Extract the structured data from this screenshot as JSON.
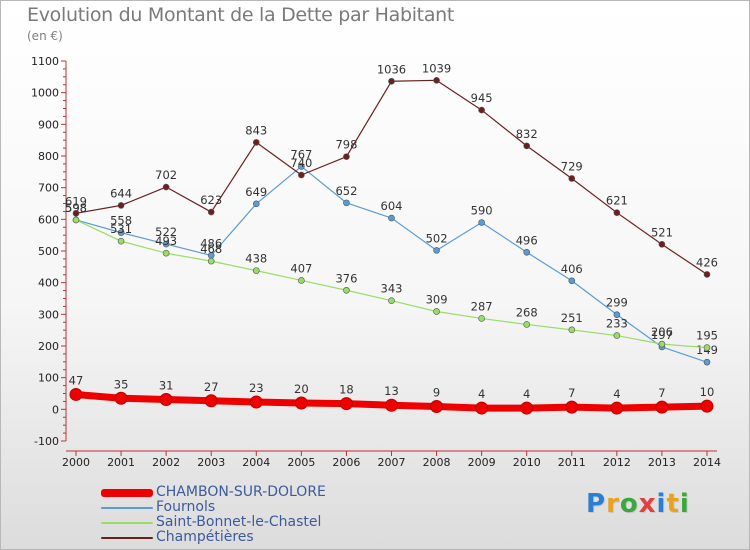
{
  "title": "Evolution du Montant de la Dette par Habitant",
  "subtitle": "(en €)",
  "logo": {
    "letters": [
      "P",
      "r",
      "o",
      "x",
      "i",
      "t",
      "i"
    ],
    "colors": [
      "#2a7fd4",
      "#e8a21d",
      "#3aa83a",
      "#e04040",
      "#2a7fd4",
      "#e8a21d",
      "#3aa83a"
    ]
  },
  "chart_data": {
    "type": "line",
    "x": [
      2000,
      2001,
      2002,
      2003,
      2004,
      2005,
      2006,
      2007,
      2008,
      2009,
      2010,
      2011,
      2012,
      2013,
      2014
    ],
    "ylim": [
      -100,
      1100
    ],
    "yticks": [
      -100,
      0,
      100,
      200,
      300,
      400,
      500,
      600,
      700,
      800,
      900,
      1000,
      1100
    ],
    "grid": false,
    "legend_position": "bottom-left",
    "series": [
      {
        "name": "CHAMBON-SUR-DOLORE",
        "color": "#ee0000",
        "values": [
          47,
          35,
          31,
          27,
          23,
          20,
          18,
          13,
          9,
          4,
          4,
          7,
          4,
          7,
          10
        ]
      },
      {
        "name": "Fournols",
        "color": "#5c9bd3",
        "values": [
          598,
          558,
          522,
          486,
          649,
          767,
          652,
          604,
          502,
          590,
          496,
          406,
          299,
          197,
          149
        ]
      },
      {
        "name": "Saint-Bonnet-le-Chastel",
        "color": "#99dd66",
        "values": [
          598,
          531,
          493,
          468,
          438,
          407,
          376,
          343,
          309,
          287,
          268,
          251,
          233,
          206,
          195
        ]
      },
      {
        "name": "Champétières",
        "color": "#6b2020",
        "values": [
          619,
          644,
          702,
          623,
          843,
          740,
          798,
          1036,
          1039,
          945,
          832,
          729,
          621,
          521,
          426
        ]
      }
    ]
  }
}
